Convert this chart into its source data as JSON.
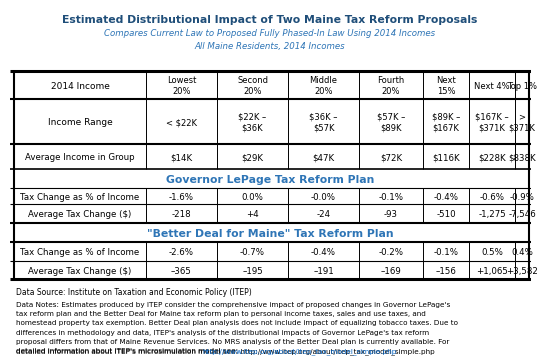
{
  "title": "Estimated Distributional Impact of Two Maine Tax Reform Proposals",
  "subtitle1": "Compares Current Law to Proposed Fully Phased-In Law Using 2014 Incomes",
  "subtitle2": "All Maine Residents, 2014 Incomes",
  "col_headers": [
    "Lowest\n20%",
    "Second\n20%",
    "Middle\n20%",
    "Fourth\n20%",
    "Next\n15%",
    "Next 4%",
    "Top 1%"
  ],
  "income_range": [
    "< $22K",
    "$22K –\n$36K",
    "$36K –\n$57K",
    "$57K –\n$89K",
    "$89K –\n$167K",
    "$167K –\n$371K",
    ">\n$371K"
  ],
  "avg_income": [
    "$14K",
    "$29K",
    "$47K",
    "$72K",
    "$116K",
    "$228K",
    "$838K"
  ],
  "lepage_pct": [
    "-1.6%",
    "0.0%",
    "-0.0%",
    "-0.1%",
    "-0.4%",
    "-0.6%",
    "-0.9%"
  ],
  "lepage_dollar": [
    "-218",
    "+4",
    "-24",
    "-93",
    "-510",
    "-1,275",
    "-7,546"
  ],
  "better_pct": [
    "-2.6%",
    "-0.7%",
    "-0.4%",
    "-0.2%",
    "-0.1%",
    "0.5%",
    "0.4%"
  ],
  "better_dollar": [
    "–365",
    "–195",
    "–191",
    "–169",
    "–156",
    "+1,065",
    "+3,582"
  ],
  "row_label_income": "2014 Income",
  "row_label_range": "Income Range",
  "row_label_avg": "Average Income in Group",
  "row_label_tax_pct": "Tax Change as % of Income",
  "row_label_tax_dollar": "Average Tax Change ($)",
  "lepage_section": "Governor LePage Tax Reform Plan",
  "better_section": "\"Better Deal for Maine\" Tax Reform Plan",
  "datasource": "Data Source: Institute on Taxation and Economic Policy (ITEP)",
  "footnote_main": "Data Notes: Estimates produced by ITEP consider the comprehensive impact of proposed changes in Governor LePage's tax reform plan and the Better Deal for Maine tax reform plan to personal income taxes, sales and use taxes, and homestead property tax exemption. Better Deal plan analysis does not include impact of equalizing tobacco taxes. Due to differences in methodology and data, ITEP's analysis of the distributional impacts of Governor LePage's tax reform proposal differs from that of Maine Revenue Services. No MRS analysis of the Better Deal plan is currently available. For detailed information about ITEP's microsimulation model see: ",
  "footnote_link": "http://www.itep.org/about/itep_tax_model_simple.php",
  "title_color": "#1F4E79",
  "subtitle_color": "#2E75B6",
  "section_color": "#2E75B6",
  "link_color": "#0563C1",
  "bg_color": "#FFFFFF",
  "text_color": "#000000"
}
